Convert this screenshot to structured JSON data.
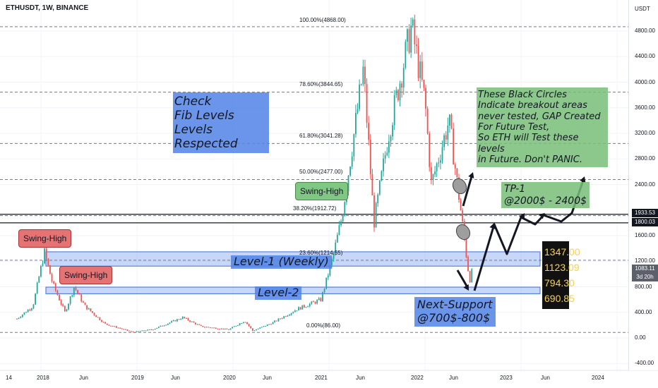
{
  "header": {
    "symbol": "ETHUSDT, 1W, BINANCE"
  },
  "y_axis": {
    "unit": "USDT",
    "ticks": [
      "4800.00",
      "4400.00",
      "4000.00",
      "3600.00",
      "3200.00",
      "2800.00",
      "2400.00",
      "1600.00",
      "1200.00",
      "800.00",
      "400.00",
      "0.00",
      "-400.00"
    ],
    "badges": [
      {
        "label": "1933.53",
        "color": "#131722"
      },
      {
        "label": "1800.03",
        "color": "#131722"
      },
      {
        "label": "1083.11",
        "color": "#5d606b"
      },
      {
        "label": "3d 20h",
        "color": "#5d606b"
      }
    ]
  },
  "x_axis": {
    "ticks": [
      "14",
      "2018",
      "Jun",
      "2019",
      "Jun",
      "2020",
      "Jun",
      "2021",
      "Jun",
      "2022",
      "Jun",
      "2023",
      "Jun",
      "2024"
    ]
  },
  "fib_levels": [
    "100.00%(4868.00)",
    "78.60%(3844.65)",
    "61.80%(3041.28)",
    "50.00%(2477.00)",
    "38.20%(1912.72)",
    "23.60%(1214.55)",
    "0.00%(86.00)"
  ],
  "annotations": {
    "check_lines": [
      "Check",
      "Fib Levels",
      "Levels Respected"
    ],
    "swing_high_1": "Swing-High",
    "swing_high_2": "Swing-High",
    "swing_high_3": "Swing-High",
    "level1": "Level-1 (Weekly)",
    "level2": "Level-2",
    "next_support_lines": [
      "Next-Support",
      "@700$-800$"
    ],
    "black_circles_lines": [
      "These Black Circles",
      "Indicate breakout areas",
      "never tested, GAP Created",
      "For Future Test,",
      "So ETH will Test these levels",
      "in Future. Don't PANIC."
    ],
    "tp_lines": [
      "TP-1",
      "@2000$ - 2400$"
    ],
    "price_levels": [
      "1347.00",
      "1123.09",
      "794.30",
      "690.85"
    ]
  },
  "chart_data": {
    "type": "candlestick",
    "symbol": "ETHUSDT",
    "timeframe": "1W",
    "exchange": "BINANCE",
    "ylim": [
      -400,
      5000
    ],
    "x_range": [
      "2017-07",
      "2024-02"
    ],
    "price_path": [
      [
        "2017-10-01",
        300
      ],
      [
        "2017-12-01",
        500
      ],
      [
        "2018-01-14",
        1350
      ],
      [
        "2018-02-15",
        850
      ],
      [
        "2018-04-01",
        400
      ],
      [
        "2018-05-06",
        800
      ],
      [
        "2018-06-15",
        500
      ],
      [
        "2018-09-01",
        220
      ],
      [
        "2018-12-15",
        90
      ],
      [
        "2019-03-01",
        135
      ],
      [
        "2019-06-23",
        320
      ],
      [
        "2019-09-01",
        180
      ],
      [
        "2019-12-15",
        130
      ],
      [
        "2020-02-15",
        270
      ],
      [
        "2020-03-15",
        110
      ],
      [
        "2020-06-01",
        240
      ],
      [
        "2020-09-01",
        450
      ],
      [
        "2020-12-01",
        600
      ],
      [
        "2021-01-15",
        1250
      ],
      [
        "2021-02-20",
        1900
      ],
      [
        "2021-05-10",
        4200
      ],
      [
        "2021-06-20",
        1800
      ],
      [
        "2021-08-15",
        3200
      ],
      [
        "2021-11-10",
        4868
      ],
      [
        "2022-01-01",
        3700
      ],
      [
        "2022-01-25",
        2400
      ],
      [
        "2022-04-01",
        3400
      ],
      [
        "2022-05-15",
        2000
      ],
      [
        "2022-06-18",
        900
      ],
      [
        "2022-07-01",
        1083
      ]
    ],
    "fib_levels": [
      {
        "ratio": "100.00%",
        "price": 4868.0
      },
      {
        "ratio": "78.60%",
        "price": 3844.65
      },
      {
        "ratio": "61.80%",
        "price": 3041.28
      },
      {
        "ratio": "50.00%",
        "price": 2477.0
      },
      {
        "ratio": "38.20%",
        "price": 1912.72
      },
      {
        "ratio": "23.60%",
        "price": 1214.55
      },
      {
        "ratio": "0.00%",
        "price": 86.0
      }
    ],
    "zones": [
      {
        "name": "Level-1 (Weekly)",
        "low": 1123.09,
        "high": 1347.0
      },
      {
        "name": "Level-2",
        "low": 690.85,
        "high": 794.3
      }
    ],
    "horizontal_lines": [
      1933.53,
      1800.03
    ],
    "current_price": 1083.11,
    "colors": {
      "up": "#26a69a",
      "down": "#ef5350",
      "zone": "#5b8def",
      "fib": "#787b86"
    }
  }
}
